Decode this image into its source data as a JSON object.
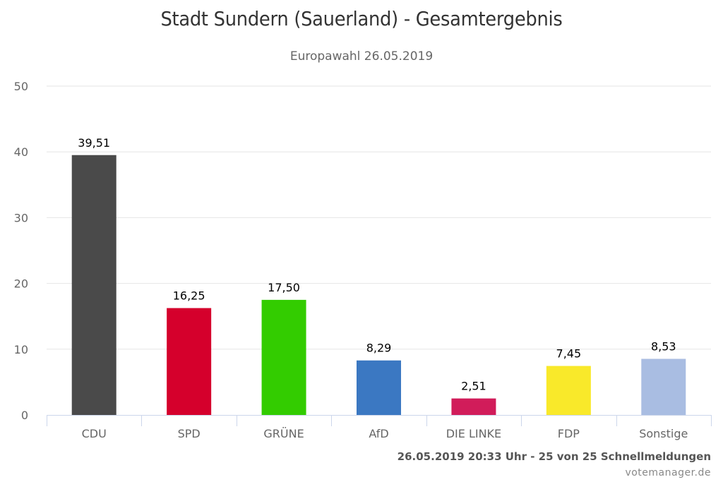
{
  "chart_data": {
    "type": "bar",
    "title": "Stadt Sundern (Sauerland) - Gesamtergebnis",
    "subtitle": "Europawahl 26.05.2019",
    "xlabel": "",
    "ylabel": "",
    "ylim": [
      0,
      50
    ],
    "yticks": [
      0,
      10,
      20,
      30,
      40,
      50
    ],
    "grid": true,
    "legend": "none",
    "categories": [
      "CDU",
      "SPD",
      "GRÜNE",
      "AfD",
      "DIE LINKE",
      "FDP",
      "Sonstige"
    ],
    "values": [
      39.51,
      16.25,
      17.5,
      8.29,
      2.51,
      7.45,
      8.53
    ],
    "data_labels": [
      "39,51",
      "16,25",
      "17,50",
      "8,29",
      "2,51",
      "7,45",
      "8,53"
    ],
    "colors": [
      "#4a4a4a",
      "#d5002c",
      "#33cc00",
      "#3b78c2",
      "#d11c5a",
      "#f9e92a",
      "#a9bde2"
    ]
  },
  "credits": {
    "timestamp": "26.05.2019 20:33 Uhr - 25 von 25 Schnellmeldungen",
    "source": "votemanager.de"
  }
}
